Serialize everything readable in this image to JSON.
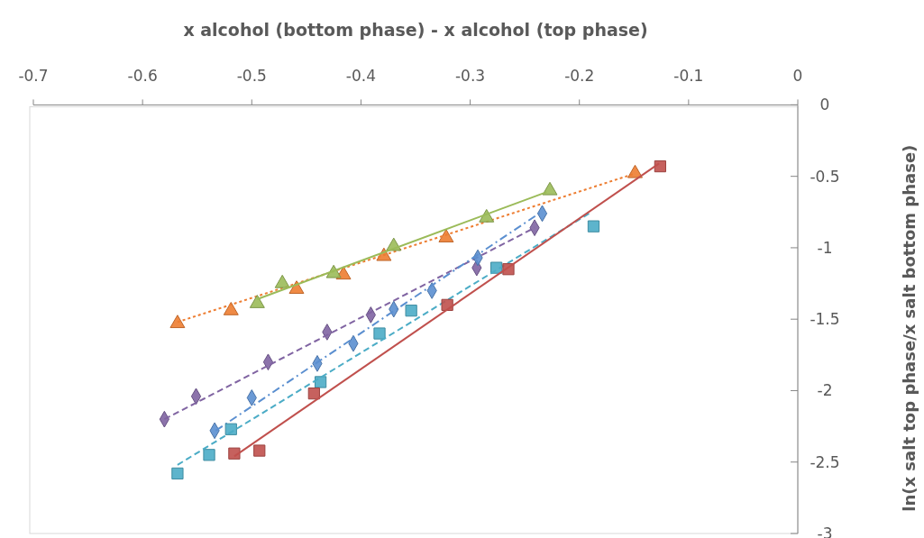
{
  "chart_data": {
    "type": "scatter",
    "xlabel": "x alcohol (bottom phase) - x alcohol (top phase)",
    "ylabel": "ln(x salt top phase/x salt bottom phase)",
    "xlim": [
      -0.7,
      0
    ],
    "xticks": [
      -0.7,
      -0.6,
      -0.5,
      -0.4,
      -0.3,
      -0.2,
      -0.1,
      0
    ],
    "ylim": [
      -3,
      0
    ],
    "yticks": [
      0,
      -0.5,
      -1,
      -1.5,
      -2,
      -2.5,
      -3
    ],
    "grid": false,
    "series": [
      {
        "color": "#ed7d31",
        "marker": "triangle",
        "x": [
          -0.568,
          -0.519,
          -0.459,
          -0.416,
          -0.379,
          -0.322,
          -0.149
        ],
        "values": [
          -1.53,
          -1.44,
          -1.29,
          -1.19,
          -1.06,
          -0.93,
          -0.48
        ]
      },
      {
        "type": "line",
        "color": "#ed7d31",
        "line_style": "dotted",
        "x": [
          -0.568,
          -0.149
        ],
        "values": [
          -1.52,
          -0.48
        ]
      },
      {
        "color": "#9bbb59",
        "marker": "triangle",
        "x": [
          -0.495,
          -0.472,
          -0.425,
          -0.37,
          -0.285,
          -0.227
        ],
        "values": [
          -1.39,
          -1.25,
          -1.18,
          -0.99,
          -0.79,
          -0.6
        ]
      },
      {
        "type": "line",
        "color": "#9bbb59",
        "line_style": "solid",
        "x": [
          -0.495,
          -0.23
        ],
        "values": [
          -1.36,
          -0.61
        ]
      },
      {
        "color": "#8064a2",
        "marker": "diamond",
        "x": [
          -0.58,
          -0.551,
          -0.485,
          -0.431,
          -0.391,
          -0.294,
          -0.241
        ],
        "values": [
          -2.2,
          -2.04,
          -1.8,
          -1.59,
          -1.47,
          -1.14,
          -0.86
        ]
      },
      {
        "type": "line",
        "color": "#8064a2",
        "line_style": "dashed",
        "x": [
          -0.58,
          -0.241
        ],
        "values": [
          -2.2,
          -0.86
        ]
      },
      {
        "color": "#5b8fd0",
        "marker": "diamond",
        "x": [
          -0.534,
          -0.5,
          -0.44,
          -0.407,
          -0.37,
          -0.335,
          -0.293,
          -0.234
        ],
        "values": [
          -2.28,
          -2.05,
          -1.81,
          -1.67,
          -1.43,
          -1.3,
          -1.07,
          -0.76
        ]
      },
      {
        "type": "line",
        "color": "#5b8fd0",
        "line_style": "dashdot",
        "x": [
          -0.533,
          -0.235
        ],
        "values": [
          -2.28,
          -0.75
        ]
      },
      {
        "color": "#4bacc6",
        "marker": "square",
        "x": [
          -0.568,
          -0.539,
          -0.519,
          -0.437,
          -0.383,
          -0.354,
          -0.276,
          -0.187
        ],
        "values": [
          -2.58,
          -2.45,
          -2.27,
          -1.94,
          -1.6,
          -1.44,
          -1.14,
          -0.85
        ]
      },
      {
        "type": "line",
        "color": "#4bacc6",
        "line_style": "dashed",
        "x": [
          -0.568,
          -0.189
        ],
        "values": [
          -2.52,
          -0.75
        ]
      },
      {
        "color": "#c0504d",
        "marker": "square",
        "x": [
          -0.516,
          -0.493,
          -0.443,
          -0.321,
          -0.265,
          -0.126
        ],
        "values": [
          -2.44,
          -2.42,
          -2.02,
          -1.4,
          -1.15,
          -0.43
        ]
      },
      {
        "type": "line",
        "color": "#c0504d",
        "line_style": "solid",
        "x": [
          -0.516,
          -0.127
        ],
        "values": [
          -2.46,
          -0.41
        ]
      }
    ]
  }
}
